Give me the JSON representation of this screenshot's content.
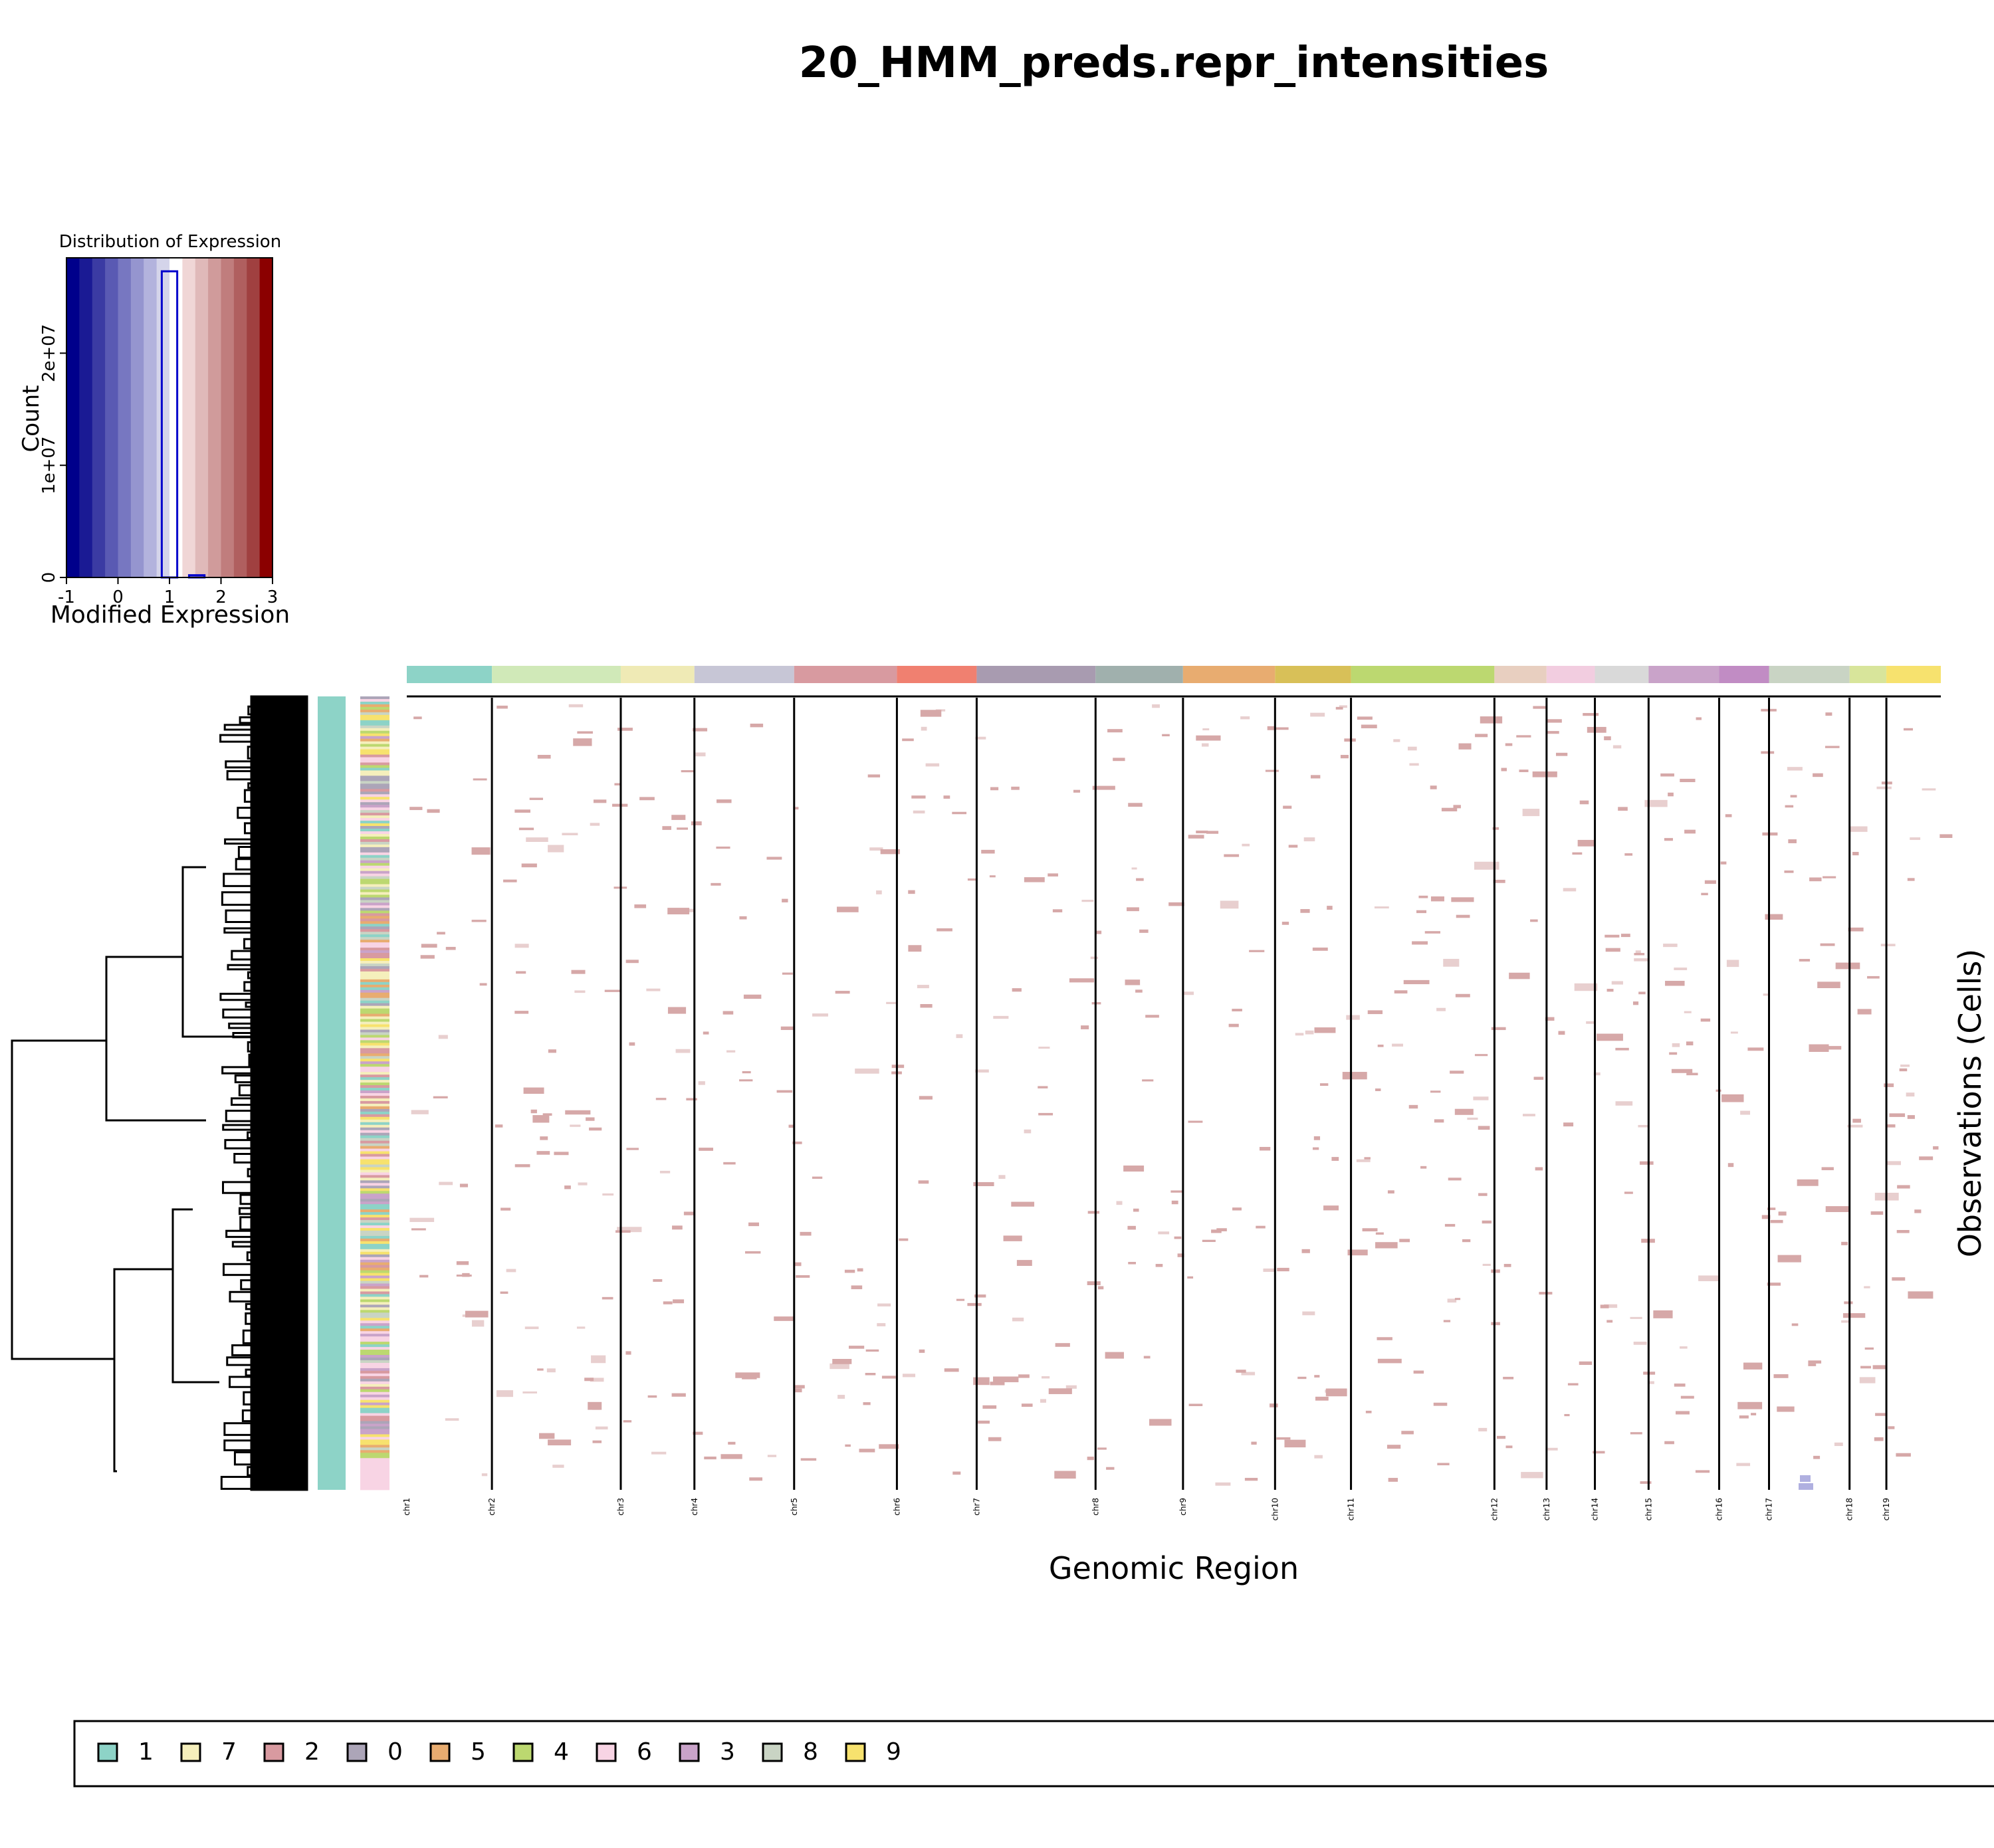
{
  "chart_data": [
    {
      "type": "histogram",
      "title": "Distribution of Expression",
      "xlabel": "Modified Expression",
      "ylabel": "Count",
      "xlim": [
        -1,
        3
      ],
      "ylim": [
        0,
        28500000
      ],
      "x_ticks": [
        "-1",
        "0",
        "1",
        "2",
        "3"
      ],
      "y_ticks": [
        {
          "value": 0,
          "label": "0"
        },
        {
          "value": 10000000,
          "label": "1e+07"
        },
        {
          "value": 20000000,
          "label": "2e+07"
        }
      ],
      "color_scale": [
        "#00008B",
        "#1a1a94",
        "#3b3ba3",
        "#5a5ab3",
        "#7777c1",
        "#9595cf",
        "#b3b3dd",
        "#d4d4ea",
        "#ffffff",
        "#f0d6d6",
        "#e0b9b9",
        "#d09b9b",
        "#c07d7d",
        "#b05f5f",
        "#a04040",
        "#8b0000"
      ],
      "bins": [
        {
          "x0": 0.85,
          "x1": 1.15,
          "count": 27300000
        },
        {
          "x0": 1.38,
          "x1": 1.68,
          "count": 200000
        }
      ],
      "bar_color": "#0000cc"
    },
    {
      "type": "heatmap",
      "title": "20_HMM_preds.repr_intensities",
      "xlabel": "Genomic Region",
      "ylabel": "Observations (Cells)",
      "chromosomes": [
        "chr1",
        "chr2",
        "chr3",
        "chr4",
        "chr5",
        "chr6",
        "chr7",
        "chr8",
        "chr9",
        "chr10",
        "chr11",
        "chr12",
        "chr13",
        "chr14",
        "chr15",
        "chr16",
        "chr17",
        "chr18",
        "chr19"
      ],
      "chromosome_boundaries": [
        0,
        0.0555,
        0.1395,
        0.1875,
        0.2525,
        0.3195,
        0.3715,
        0.449,
        0.506,
        0.566,
        0.6155,
        0.709,
        0.743,
        0.7745,
        0.8095,
        0.8555,
        0.888,
        0.9405,
        0.9645,
        1.0
      ],
      "chromosome_colors": [
        "#8dd3c7",
        "#d0e9b8",
        "#efeab5",
        "#c7c6d6",
        "#d89aa0",
        "#f08070",
        "#a89bb0",
        "#a0b0ad",
        "#e8ac70",
        "#d8c058",
        "#bcd870",
        "#e8cfc0",
        "#f2cde0",
        "#d9d9d9",
        "#c9a3c9",
        "#c18cc4",
        "#c9d4c4",
        "#d8e59b",
        "#f7e26e"
      ],
      "cell_count": 1000,
      "value_color_positive": "#d6a8a8",
      "value_color_negative": "#b0b0e0",
      "annotation_track_color": "#8dd3c7",
      "legend": [
        {
          "label": "1",
          "color": "#8dd3c7"
        },
        {
          "label": "7",
          "color": "#f5efbc"
        },
        {
          "label": "2",
          "color": "#d89aa0"
        },
        {
          "label": "0",
          "color": "#aca5b8"
        },
        {
          "label": "5",
          "color": "#e8ac70"
        },
        {
          "label": "4",
          "color": "#bcd870"
        },
        {
          "label": "6",
          "color": "#f8d4e4"
        },
        {
          "label": "3",
          "color": "#c9a3c9"
        },
        {
          "label": "8",
          "color": "#c9d4c4"
        },
        {
          "label": "9",
          "color": "#f7e26e"
        }
      ]
    }
  ]
}
